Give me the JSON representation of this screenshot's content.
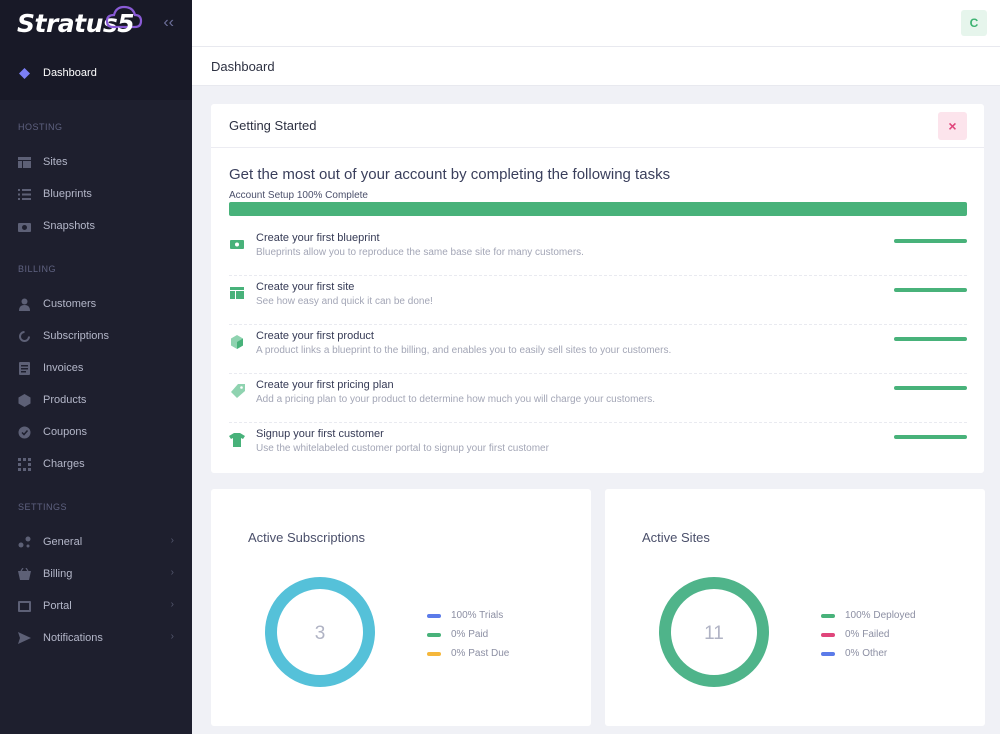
{
  "brand": {
    "name": "Stratus",
    "digit": "5"
  },
  "sidebar": {
    "active": {
      "label": "Dashboard"
    },
    "sections": [
      {
        "title": "Hosting",
        "items": [
          {
            "label": "Sites"
          },
          {
            "label": "Blueprints"
          },
          {
            "label": "Snapshots"
          }
        ]
      },
      {
        "title": "Billing",
        "items": [
          {
            "label": "Customers"
          },
          {
            "label": "Subscriptions"
          },
          {
            "label": "Invoices"
          },
          {
            "label": "Products"
          },
          {
            "label": "Coupons"
          },
          {
            "label": "Charges"
          }
        ]
      },
      {
        "title": "Settings",
        "items": [
          {
            "label": "General"
          },
          {
            "label": "Billing"
          },
          {
            "label": "Portal"
          },
          {
            "label": "Notifications"
          }
        ]
      }
    ]
  },
  "user": {
    "initial": "C"
  },
  "breadcrumb": {
    "title": "Dashboard"
  },
  "getting_started": {
    "title": "Getting Started",
    "close": "×",
    "heading": "Get the most out of your account by completing the following tasks",
    "progress_label": "Account Setup 100% Complete",
    "progress": 1.0,
    "tasks": [
      {
        "title": "Create your first blueprint",
        "desc": "Blueprints allow you to reproduce the same base site for many customers.",
        "progress": 1.0
      },
      {
        "title": "Create your first site",
        "desc": "See how easy and quick it can be done!",
        "progress": 1.0
      },
      {
        "title": "Create your first product",
        "desc": "A product links a blueprint to the billing, and enables you to easily sell sites to your customers.",
        "progress": 1.0
      },
      {
        "title": "Create your first pricing plan",
        "desc": "Add a pricing plan to your product to determine how much you will charge your customers.",
        "progress": 1.0
      },
      {
        "title": "Signup your first customer",
        "desc": "Use the whitelabeled customer portal to signup your first customer",
        "progress": 1.0
      }
    ]
  },
  "stats": {
    "subscriptions": {
      "title": "Active Subscriptions",
      "value": "3",
      "ring_color": "#55c1d9",
      "legend": [
        {
          "label": "100% Trials",
          "color": "#5b7be9"
        },
        {
          "label": "0% Paid",
          "color": "#48b27a"
        },
        {
          "label": "0% Past Due",
          "color": "#f5b73b"
        }
      ]
    },
    "sites": {
      "title": "Active Sites",
      "value": "11",
      "ring_color": "#4fb48a",
      "legend": [
        {
          "label": "100% Deployed",
          "color": "#48b27a"
        },
        {
          "label": "0% Failed",
          "color": "#e0457b"
        },
        {
          "label": "0% Other",
          "color": "#5b7be9"
        }
      ]
    }
  },
  "colors": {
    "accent": "#48b27a",
    "sidebar_bg": "#1e1f2e",
    "active_icon": "#7b7ff5"
  }
}
